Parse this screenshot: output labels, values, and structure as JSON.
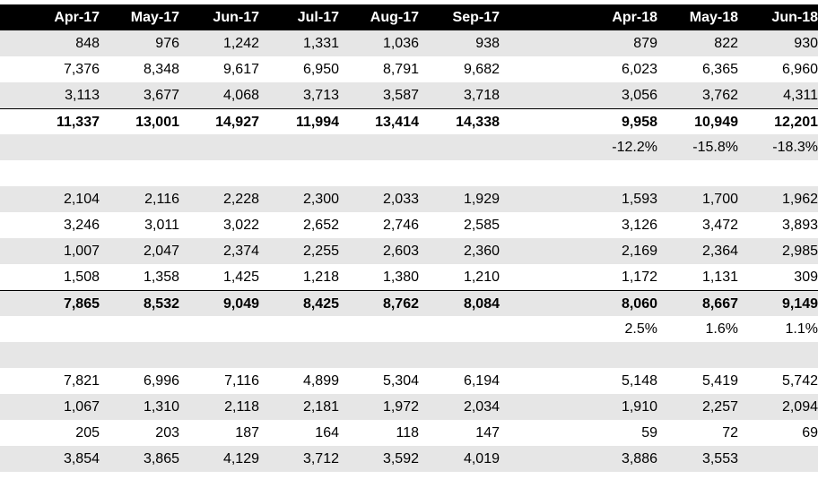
{
  "columns": [
    "Apr-17",
    "May-17",
    "Jun-17",
    "Jul-17",
    "Aug-17",
    "Sep-17",
    "Apr-18",
    "May-18",
    "Jun-18"
  ],
  "rows": [
    {
      "kind": "data",
      "shade": true,
      "values": [
        "848",
        "976",
        "1,242",
        "1,331",
        "1,036",
        "938",
        "879",
        "822",
        "930"
      ]
    },
    {
      "kind": "data",
      "shade": false,
      "values": [
        "7,376",
        "8,348",
        "9,617",
        "6,950",
        "8,791",
        "9,682",
        "6,023",
        "6,365",
        "6,960"
      ]
    },
    {
      "kind": "data",
      "shade": true,
      "values": [
        "3,113",
        "3,677",
        "4,068",
        "3,713",
        "3,587",
        "3,718",
        "3,056",
        "3,762",
        "4,311"
      ]
    },
    {
      "kind": "total",
      "shade": false,
      "values": [
        "11,337",
        "13,001",
        "14,927",
        "11,994",
        "13,414",
        "14,338",
        "9,958",
        "10,949",
        "12,201"
      ]
    },
    {
      "kind": "pct",
      "shade": true,
      "values": [
        "",
        "",
        "",
        "",
        "",
        "",
        "-12.2%",
        "-15.8%",
        "-18.3%"
      ]
    },
    {
      "kind": "blank",
      "shade": false,
      "values": [
        "",
        "",
        "",
        "",
        "",
        "",
        "",
        "",
        ""
      ]
    },
    {
      "kind": "data",
      "shade": true,
      "values": [
        "2,104",
        "2,116",
        "2,228",
        "2,300",
        "2,033",
        "1,929",
        "1,593",
        "1,700",
        "1,962"
      ]
    },
    {
      "kind": "data",
      "shade": false,
      "values": [
        "3,246",
        "3,011",
        "3,022",
        "2,652",
        "2,746",
        "2,585",
        "3,126",
        "3,472",
        "3,893"
      ]
    },
    {
      "kind": "data",
      "shade": true,
      "values": [
        "1,007",
        "2,047",
        "2,374",
        "2,255",
        "2,603",
        "2,360",
        "2,169",
        "2,364",
        "2,985"
      ]
    },
    {
      "kind": "data",
      "shade": false,
      "values": [
        "1,508",
        "1,358",
        "1,425",
        "1,218",
        "1,380",
        "1,210",
        "1,172",
        "1,131",
        "309"
      ]
    },
    {
      "kind": "total",
      "shade": true,
      "values": [
        "7,865",
        "8,532",
        "9,049",
        "8,425",
        "8,762",
        "8,084",
        "8,060",
        "8,667",
        "9,149"
      ]
    },
    {
      "kind": "pct",
      "shade": false,
      "values": [
        "",
        "",
        "",
        "",
        "",
        "",
        "2.5%",
        "1.6%",
        "1.1%"
      ]
    },
    {
      "kind": "blank",
      "shade": true,
      "values": [
        "",
        "",
        "",
        "",
        "",
        "",
        "",
        "",
        ""
      ]
    },
    {
      "kind": "data",
      "shade": false,
      "values": [
        "7,821",
        "6,996",
        "7,116",
        "4,899",
        "5,304",
        "6,194",
        "5,148",
        "5,419",
        "5,742"
      ]
    },
    {
      "kind": "data",
      "shade": true,
      "values": [
        "1,067",
        "1,310",
        "2,118",
        "2,181",
        "1,972",
        "2,034",
        "1,910",
        "2,257",
        "2,094"
      ]
    },
    {
      "kind": "data",
      "shade": false,
      "values": [
        "205",
        "203",
        "187",
        "164",
        "118",
        "147",
        "59",
        "72",
        "69"
      ]
    },
    {
      "kind": "data",
      "shade": true,
      "values": [
        "3,854",
        "3,865",
        "4,129",
        "3,712",
        "3,592",
        "4,019",
        "3,886",
        "3,553",
        ""
      ]
    }
  ]
}
